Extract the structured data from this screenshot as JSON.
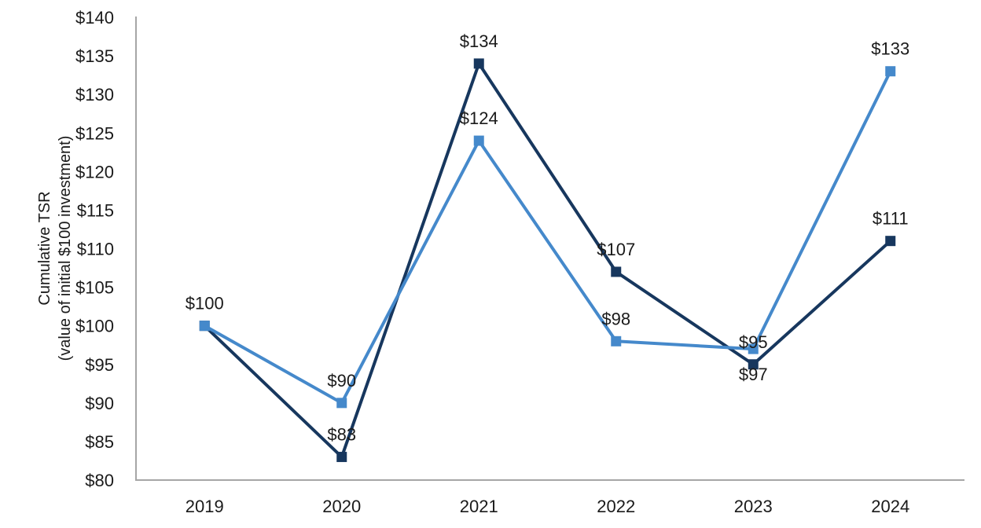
{
  "chart_data": {
    "type": "line",
    "title": "",
    "ylabel_line1": "Cumulative TSR",
    "ylabel_line2": "(value of initial $100 investment)",
    "xlabel": "",
    "categories": [
      "2019",
      "2020",
      "2021",
      "2022",
      "2023",
      "2024"
    ],
    "y_axis": {
      "min": 80,
      "max": 140,
      "step": 5,
      "tick_labels": [
        "$80",
        "$85",
        "$90",
        "$95",
        "$100",
        "$105",
        "$110",
        "$115",
        "$120",
        "$125",
        "$130",
        "$135",
        "$140"
      ]
    },
    "series": [
      {
        "name": "dark-navy-series",
        "color": "#17375E",
        "marker": "square",
        "values": [
          100,
          83,
          134,
          107,
          95,
          111
        ],
        "data_labels": [
          null,
          "$83",
          "$134",
          "$107",
          "$95",
          "$111"
        ],
        "label_positions": [
          null,
          "above",
          "above",
          "above",
          "above",
          "above"
        ]
      },
      {
        "name": "light-blue-series",
        "color": "#4589CB",
        "marker": "square",
        "values": [
          100,
          90,
          124,
          98,
          97,
          133
        ],
        "data_labels": [
          "$100",
          "$90",
          "$124",
          "$98",
          "$97",
          "$133"
        ],
        "label_positions": [
          "above",
          "above",
          "above",
          "above",
          "below",
          "above"
        ]
      }
    ],
    "legend": "none",
    "grid": "off",
    "axis_color": "#A6A6A6",
    "text_color": "#1A1A1A",
    "background_color": "#FFFFFF"
  }
}
